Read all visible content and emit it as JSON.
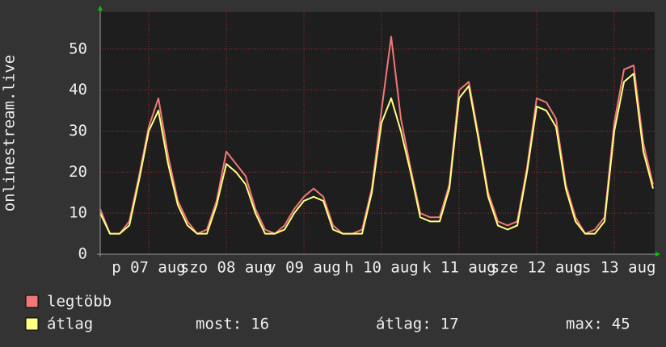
{
  "chart_data": {
    "type": "line",
    "y_label": "onlinestream.live",
    "categories": [
      null,
      null,
      null,
      null,
      null,
      "p 07 aug",
      null,
      null,
      null,
      null,
      null,
      null,
      null,
      "szo 08 aug",
      null,
      null,
      null,
      null,
      null,
      null,
      null,
      "v 09 aug",
      null,
      null,
      null,
      null,
      null,
      null,
      null,
      "h 10 aug",
      null,
      null,
      null,
      null,
      null,
      null,
      null,
      "k 11 aug",
      null,
      null,
      null,
      null,
      null,
      null,
      null,
      "sze 12 aug",
      null,
      null,
      null,
      null,
      null,
      null,
      null,
      "cs 13 aug",
      null,
      null,
      null,
      null
    ],
    "series": [
      {
        "name": "legtöbb",
        "color": "#f07878",
        "values": [
          11,
          5,
          5,
          8,
          19,
          31,
          38,
          24,
          13,
          8,
          5,
          6,
          13,
          25,
          22,
          19,
          11,
          6,
          5,
          7,
          11,
          14,
          16,
          14,
          7,
          5,
          5,
          6,
          16,
          35,
          53,
          33,
          21,
          10,
          9,
          9,
          17,
          40,
          42,
          29,
          15,
          8,
          7,
          8,
          21,
          38,
          37,
          33,
          17,
          9,
          5,
          6,
          9,
          32,
          45,
          46,
          27,
          17
        ]
      },
      {
        "name": "átlag",
        "color": "#ffff80",
        "values": [
          10,
          5,
          5,
          7,
          18,
          30,
          35,
          22,
          12,
          7,
          5,
          5,
          12,
          22,
          20,
          17,
          10,
          5,
          5,
          6,
          10,
          13,
          14,
          13,
          6,
          5,
          5,
          5,
          15,
          32,
          38,
          30,
          20,
          9,
          8,
          8,
          16,
          38,
          41,
          28,
          14,
          7,
          6,
          7,
          20,
          36,
          35,
          31,
          16,
          8,
          5,
          5,
          8,
          30,
          42,
          44,
          25,
          16
        ]
      }
    ],
    "stats": [
      {
        "label": "most:",
        "value": 16
      },
      {
        "label": "átlag:",
        "value": 17
      },
      {
        "label": "max:",
        "value": 45
      }
    ],
    "ylim": [
      0,
      59
    ],
    "yticks": [
      0,
      10,
      20,
      30,
      40,
      50
    ],
    "grid": true
  }
}
